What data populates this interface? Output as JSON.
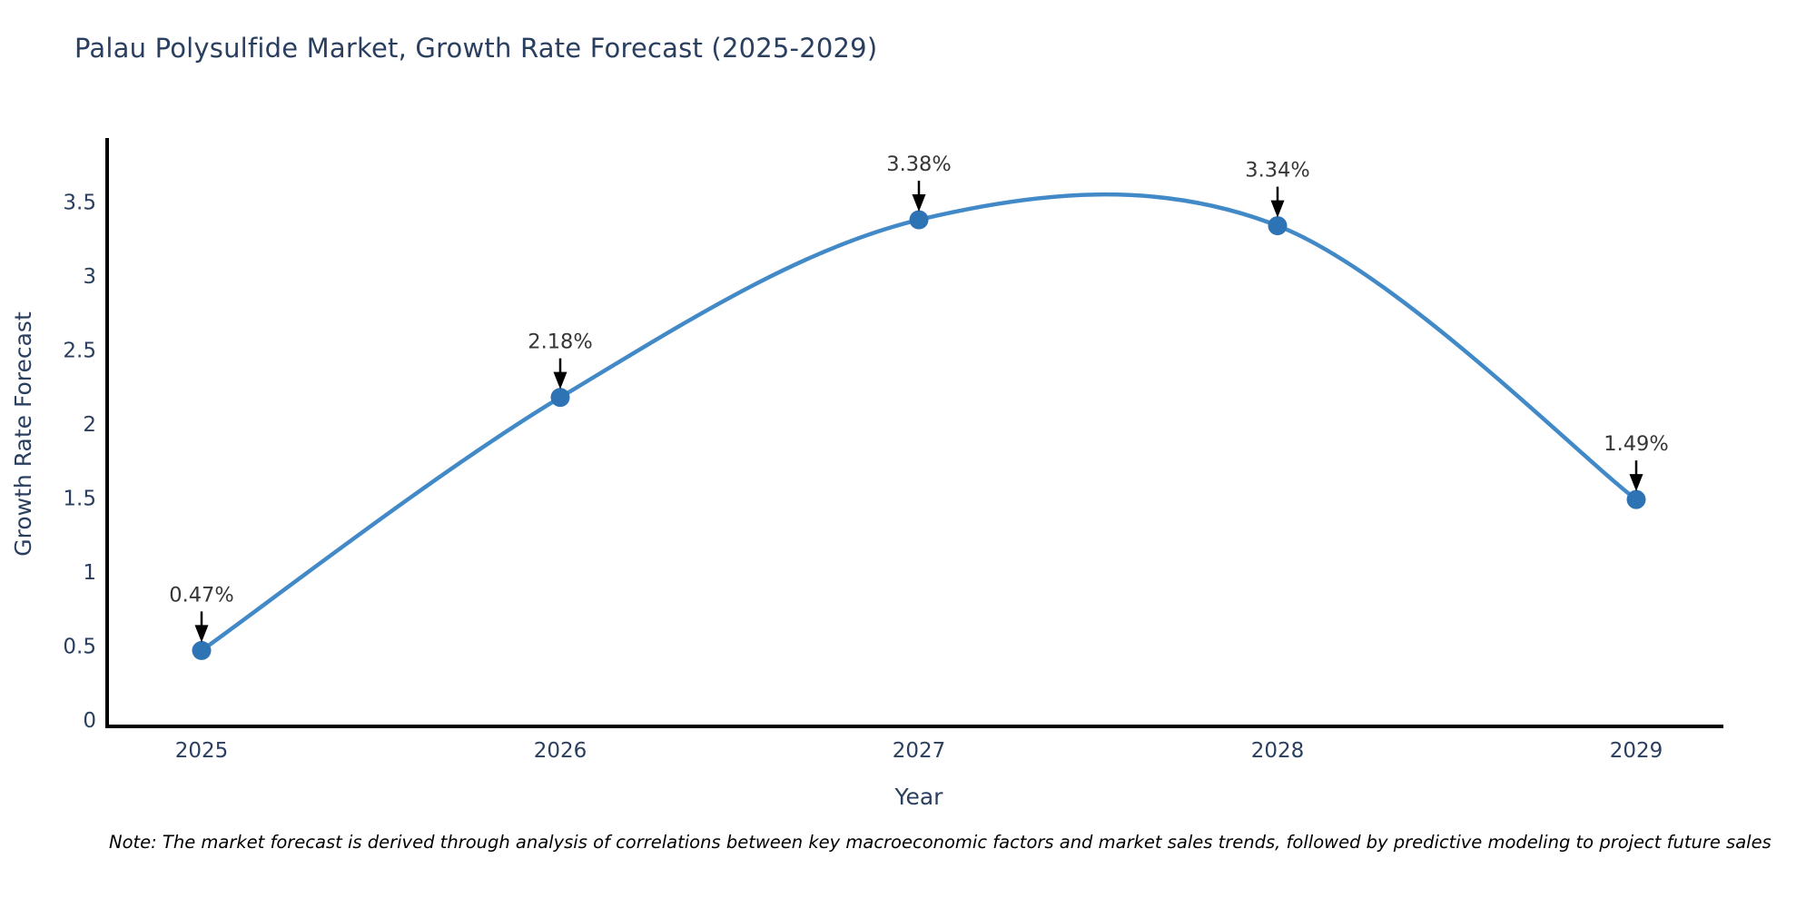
{
  "chart": {
    "note": "Note: The market forecast is derived through analysis of correlations between key macroeconomic factors and market sales trends, followed by predictive modeling to project future sales",
    "colors": {
      "line": "#4189c7",
      "marker": "#2e74b5",
      "axis": "#000000",
      "text": "#2a3f5f",
      "annotation": "#363636",
      "arrow": "#000000"
    }
  },
  "chart_data": {
    "type": "line",
    "categories": [
      "2025",
      "2026",
      "2027",
      "2028",
      "2029"
    ],
    "values": [
      0.47,
      2.18,
      3.38,
      3.34,
      1.49
    ],
    "labels": [
      "0.47%",
      "2.18%",
      "3.38%",
      "3.34%",
      "1.49%"
    ],
    "title": "Palau Polysulfide Market, Growth Rate Forecast (2025-2029)",
    "xlabel": "Year",
    "ylabel": "Growth Rate Forecast",
    "yticks": [
      0,
      0.5,
      1,
      1.5,
      2,
      2.5,
      3,
      3.5
    ],
    "ylim": [
      0,
      3.5
    ],
    "line_shape": "spline",
    "grid": false,
    "legend": false,
    "markers": true,
    "annotations_arrow": true
  }
}
